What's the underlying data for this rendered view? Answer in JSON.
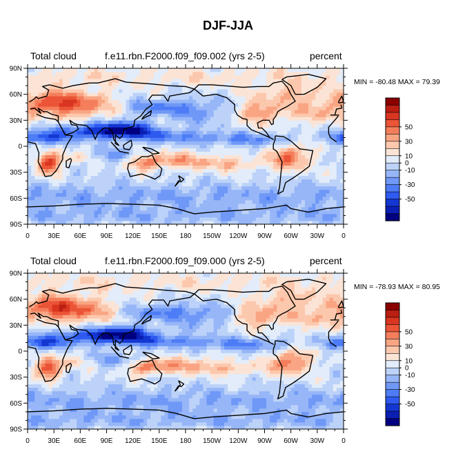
{
  "figure": {
    "title": "DJF-JJA",
    "colors": {
      "land_outline": "#000000",
      "frame": "#000000",
      "levels": [
        "#000080",
        "#0b1fb4",
        "#1437d2",
        "#2e5af0",
        "#4d7cf6",
        "#6f98f7",
        "#96b6f8",
        "#bcd2f8",
        "#e2ecfa",
        "#fbe4d6",
        "#fcc8ad",
        "#f9a583",
        "#f47e5c",
        "#eb5436",
        "#d93520",
        "#bb1e12",
        "#8a0000"
      ]
    }
  },
  "chart_data": [
    {
      "type": "heatmap",
      "left_title": "Total cloud",
      "center_title": "f.e11.rbn.F2000.f09_f09.002 (yrs 2-5)",
      "right_title": "percent",
      "min_max_label": "MIN = -80.48 MAX =  79.39",
      "min": -80.48,
      "max": 79.39,
      "xlim": [
        0,
        360
      ],
      "ylim": [
        -90,
        90
      ],
      "x_tick_labels": [
        "0",
        "30E",
        "60E",
        "90E",
        "120E",
        "150E",
        "180",
        "150W",
        "120W",
        "90W",
        "60W",
        "30W",
        "0"
      ],
      "y_tick_labels": [
        "90N",
        "60N",
        "30N",
        "0",
        "30S",
        "60S",
        "90S"
      ],
      "colorbar_levels": [
        -70,
        -60,
        -50,
        -40,
        -30,
        -20,
        -10,
        0,
        10,
        20,
        30,
        40,
        50,
        60,
        70
      ],
      "colorbar_labels": [
        "50",
        "30",
        "10",
        "0",
        "-10",
        "-30",
        "-50"
      ]
    },
    {
      "type": "heatmap",
      "left_title": "Total cloud",
      "center_title": "f.e11.rbn.F2000.f09_f09.000 (yrs 2-5)",
      "right_title": "percent",
      "min_max_label": "MIN = -78.93 MAX =  80.95",
      "min": -78.93,
      "max": 80.95,
      "xlim": [
        0,
        360
      ],
      "ylim": [
        -90,
        90
      ],
      "x_tick_labels": [
        "0",
        "30E",
        "60E",
        "90E",
        "120E",
        "150E",
        "180",
        "150W",
        "120W",
        "90W",
        "60W",
        "30W",
        "0"
      ],
      "y_tick_labels": [
        "90N",
        "60N",
        "30N",
        "0",
        "30S",
        "60S",
        "90S"
      ],
      "colorbar_levels": [
        -70,
        -60,
        -50,
        -40,
        -30,
        -20,
        -10,
        0,
        10,
        20,
        30,
        40,
        50,
        60,
        70
      ],
      "colorbar_labels": [
        "50",
        "30",
        "10",
        "0",
        "-10",
        "-30",
        "-50"
      ]
    }
  ]
}
